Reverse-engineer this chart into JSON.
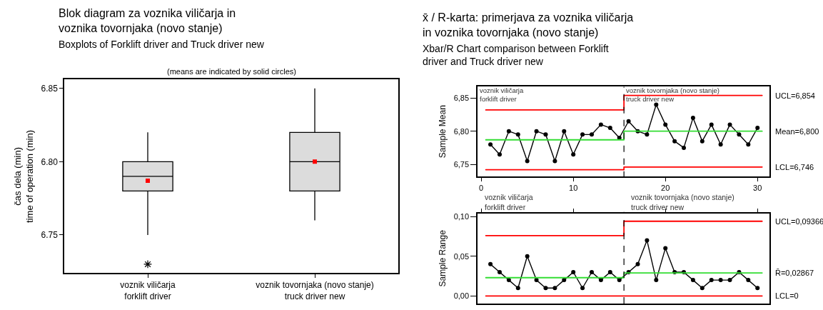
{
  "chart_data": [
    {
      "type": "box",
      "title": "Blok diagram za voznika viličarja in\nvoznika tovornjaka (novo stanje)",
      "subtitle": "Boxplots of Forklift driver and Truck driver new",
      "annotations": [
        "(means are indicated by solid circles)"
      ],
      "categories": [
        "voznik viličarja\nforklift driver",
        "voznik tovornjaka (novo stanje)\ntruck driver new"
      ],
      "ylabel": "čas dela (min)\ntime of operation (min)",
      "ylim": [
        6.724,
        6.856
      ],
      "yticks": [
        {
          "value": 6.75,
          "label": "6.75"
        },
        {
          "value": 6.8,
          "label": "6.80"
        },
        {
          "value": 6.85,
          "label": "6.85"
        }
      ],
      "color": "#dcdcdc",
      "boxes": [
        {
          "low": 6.75,
          "q1": 6.78,
          "median": 6.79,
          "q3": 6.8,
          "high": 6.82,
          "mean": 6.787,
          "outliers": [
            6.73
          ]
        },
        {
          "low": 6.76,
          "q1": 6.78,
          "median": 6.8,
          "q3": 6.82,
          "high": 6.85,
          "mean": 6.8
        }
      ]
    },
    {
      "type": "line",
      "title": "x̄ / R-karta: primerjava za voznika viličarja\nin voznika tovornjaka (novo stanje)",
      "subtitle": "Xbar/R Chart comparison between Forklift\ndriver and Truck driver new",
      "ylabel": "Sample Mean",
      "marker": "circle",
      "x": [
        1,
        2,
        3,
        4,
        5,
        6,
        7,
        8,
        9,
        10,
        11,
        12,
        13,
        14,
        15,
        16,
        17,
        18,
        19,
        20,
        21,
        22,
        23,
        24,
        25,
        26,
        27,
        28,
        29,
        30
      ],
      "xlim": [
        -0.4,
        31.3
      ],
      "xticks": [
        0,
        10,
        20,
        30
      ],
      "ylim": [
        6.732,
        6.867
      ],
      "yticks": [
        {
          "value": 6.75,
          "label": "6,75"
        },
        {
          "value": 6.8,
          "label": "6,80"
        },
        {
          "value": 6.85,
          "label": "6,85"
        }
      ],
      "series": [
        {
          "color": "#000000",
          "values": [
            6.78,
            6.765,
            6.8,
            6.795,
            6.755,
            6.8,
            6.795,
            6.755,
            6.8,
            6.765,
            6.795,
            6.795,
            6.81,
            6.805,
            6.79,
            6.815,
            6.8,
            6.795,
            6.84,
            6.81,
            6.785,
            6.775,
            6.82,
            6.785,
            6.81,
            6.78,
            6.81,
            6.795,
            6.78,
            6.805
          ]
        },
        {
          "type": "line",
          "marker": "none",
          "color": "#ff0000",
          "x": [
            0.5,
            15.5,
            15.5,
            30.5
          ],
          "values": [
            6.832,
            6.832,
            6.854,
            6.854
          ]
        },
        {
          "type": "line",
          "marker": "none",
          "color": "#33dd33",
          "x": [
            0.5,
            15.5,
            15.5,
            30.5
          ],
          "values": [
            6.787,
            6.787,
            6.8,
            6.8
          ]
        },
        {
          "type": "line",
          "marker": "none",
          "color": "#ff0000",
          "x": [
            0.5,
            15.5,
            15.5,
            30.5
          ],
          "values": [
            6.742,
            6.742,
            6.746,
            6.746
          ]
        }
      ],
      "ref_lines": [
        {
          "axis": "x",
          "value": 15.5,
          "color": "#000000",
          "line_style": "dashed"
        }
      ],
      "annotations": [
        "UCL=6,854",
        "Mean=6,800",
        "LCL=6,746",
        "voznik viličarja\nforklift driver",
        "voznik tovornjaka (novo stanje)\ntruck driver new"
      ]
    },
    {
      "type": "line",
      "ylabel": "Sample Range",
      "marker": "circle",
      "tick_labels": "y",
      "x": [
        1,
        2,
        3,
        4,
        5,
        6,
        7,
        8,
        9,
        10,
        11,
        12,
        13,
        14,
        15,
        16,
        17,
        18,
        19,
        20,
        21,
        22,
        23,
        24,
        25,
        26,
        27,
        28,
        29,
        30
      ],
      "xlim": [
        -0.4,
        31.3
      ],
      "xticks": [
        0,
        10,
        20,
        30
      ],
      "ylim": [
        -0.0096,
        0.104
      ],
      "yticks": [
        {
          "value": 0,
          "label": "0,00"
        },
        {
          "value": 0.05,
          "label": "0,05"
        },
        {
          "value": 0.1,
          "label": "0,10"
        }
      ],
      "series": [
        {
          "color": "#000000",
          "values": [
            0.04,
            0.03,
            0.02,
            0.01,
            0.05,
            0.02,
            0.01,
            0.01,
            0.02,
            0.03,
            0.01,
            0.03,
            0.02,
            0.03,
            0.02,
            0.03,
            0.04,
            0.07,
            0.02,
            0.06,
            0.03,
            0.03,
            0.02,
            0.01,
            0.02,
            0.02,
            0.02,
            0.03,
            0.02,
            0.01
          ]
        },
        {
          "type": "line",
          "marker": "none",
          "color": "#ff0000",
          "x": [
            0.5,
            15.5,
            15.5,
            30.5
          ],
          "values": [
            0.076,
            0.076,
            0.094,
            0.094
          ]
        },
        {
          "type": "line",
          "marker": "none",
          "color": "#33dd33",
          "x": [
            0.5,
            15.5,
            15.5,
            30.5
          ],
          "values": [
            0.023,
            0.023,
            0.029,
            0.029
          ]
        },
        {
          "type": "line",
          "marker": "none",
          "color": "#ff0000",
          "x": [
            0.5,
            15.5,
            15.5,
            30.5
          ],
          "values": [
            0,
            0,
            0,
            0
          ]
        }
      ],
      "ref_lines": [
        {
          "axis": "x",
          "value": 15.5,
          "color": "#000000",
          "line_style": "dashed"
        }
      ],
      "annotations": [
        "UCL=0,09366",
        "R̄=0,02867",
        "LCL=0",
        "voznik viličarja\nforklift driver",
        "voznik tovornjaka (novo stanje)\ntruck driver new"
      ]
    }
  ]
}
